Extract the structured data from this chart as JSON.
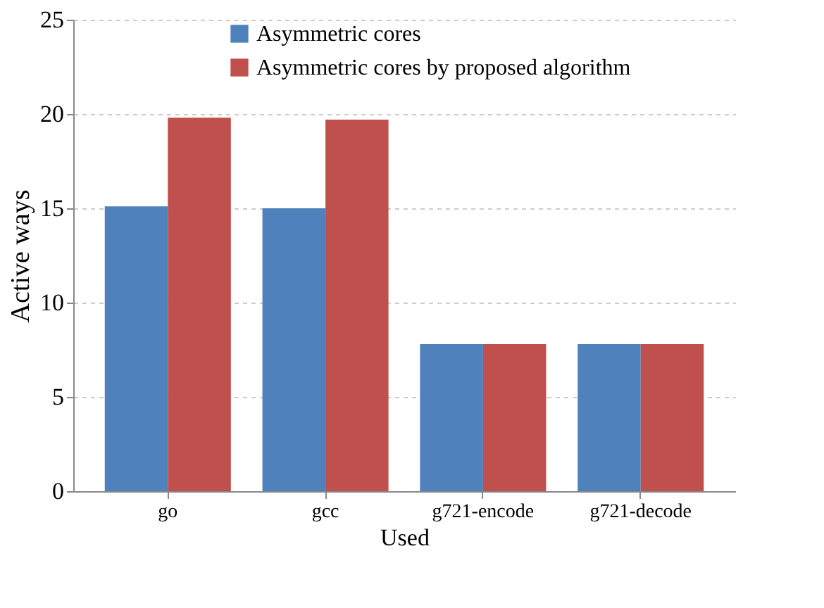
{
  "chart_data": {
    "type": "bar",
    "xlabel": "Used",
    "ylabel": "Active ways",
    "categories": [
      "go",
      "gcc",
      "g721-encode",
      "g721-decode"
    ],
    "series": [
      {
        "name": "Asymmetric cores",
        "color": "#4f81bd",
        "values": [
          15.1,
          15.0,
          7.8,
          7.8
        ]
      },
      {
        "name": "Asymmetric cores by proposed algorithm",
        "color": "#c0504d",
        "values": [
          19.8,
          19.7,
          7.8,
          7.8
        ]
      }
    ],
    "ylim": [
      0,
      25
    ],
    "yticks": [
      0,
      5,
      10,
      15,
      20,
      25
    ],
    "grid": "y",
    "legend": "top"
  }
}
